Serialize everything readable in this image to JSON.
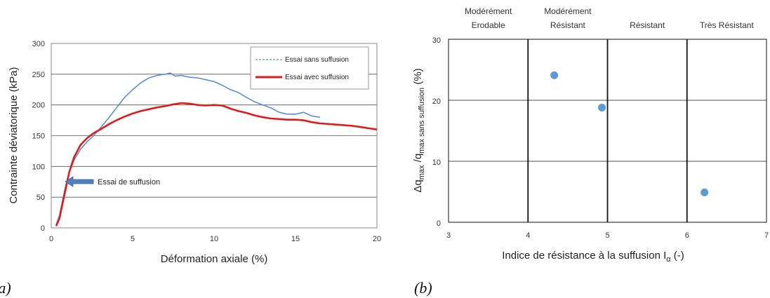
{
  "chart_data": [
    {
      "type": "line",
      "panel": "(a)",
      "xlabel": "Déformation axiale (%)",
      "ylabel": "Contrainte déviatorique (kPa)",
      "xlim": [
        0,
        20
      ],
      "ylim": [
        0,
        300
      ],
      "xticks": [
        0,
        5,
        10,
        15,
        20
      ],
      "yticks": [
        0,
        50,
        100,
        150,
        200,
        250,
        300
      ],
      "grid": "horizontal",
      "legend_position": "top-right",
      "annotation": "Essai de suffusion",
      "annotation_point": [
        1.0,
        75
      ],
      "series": [
        {
          "name": "Essai sans suffusion",
          "color": "#5b8fd1",
          "x": [
            0.3,
            0.5,
            0.7,
            0.9,
            1.1,
            1.4,
            1.8,
            2.2,
            2.6,
            3.0,
            3.5,
            4.0,
            4.5,
            5.0,
            5.5,
            6.0,
            6.5,
            7.0,
            7.3,
            7.6,
            8.0,
            8.5,
            9.0,
            9.5,
            10.0,
            10.5,
            11.0,
            11.5,
            12.0,
            12.5,
            13.0,
            13.5,
            14.0,
            14.5,
            15.0,
            15.5,
            16.0,
            16.5
          ],
          "y": [
            5,
            20,
            45,
            70,
            90,
            110,
            128,
            140,
            150,
            162,
            178,
            195,
            212,
            225,
            236,
            244,
            248,
            250,
            252,
            247,
            248,
            245,
            244,
            241,
            238,
            232,
            225,
            220,
            212,
            205,
            200,
            195,
            188,
            185,
            185,
            188,
            182,
            180
          ]
        },
        {
          "name": "Essai avec suffusion",
          "color": "#e01b1b",
          "x": [
            0.3,
            0.5,
            0.7,
            0.9,
            1.1,
            1.4,
            1.8,
            2.2,
            2.6,
            3.0,
            3.5,
            4.0,
            4.5,
            5.0,
            5.5,
            6.0,
            6.5,
            7.0,
            7.5,
            8.0,
            8.5,
            9.0,
            9.5,
            10.0,
            10.5,
            11.0,
            11.5,
            12.0,
            12.5,
            13.0,
            13.5,
            14.0,
            14.5,
            15.0,
            15.5,
            16.0,
            16.5,
            17.0,
            17.5,
            18.0,
            18.5,
            19.0,
            19.5,
            20.0
          ],
          "y": [
            3,
            15,
            40,
            65,
            90,
            115,
            135,
            146,
            154,
            160,
            168,
            175,
            181,
            186,
            190,
            193,
            196,
            198,
            201,
            203,
            202,
            200,
            199,
            200,
            199,
            194,
            190,
            187,
            183,
            180,
            178,
            177,
            176,
            176,
            175,
            172,
            170,
            169,
            168,
            167,
            166,
            164,
            162,
            160
          ]
        }
      ]
    },
    {
      "type": "scatter",
      "panel": "(b)",
      "xlabel": "Indice de résistance à la suffusion I",
      "xlabel_sub": "α",
      "xlabel_suffix": " (-)",
      "ylabel_parts": [
        "Δq",
        "max",
        " /q",
        "max sans suffusion",
        " (%)"
      ],
      "xlim": [
        3,
        7
      ],
      "ylim": [
        0,
        30
      ],
      "xticks": [
        3,
        4,
        5,
        6,
        7
      ],
      "yticks": [
        0,
        10,
        20,
        30
      ],
      "zones": [
        "Modéré ment Erodable",
        "Modérément Résistant",
        "Résistant",
        "Très Résistant"
      ],
      "zone_lines": [
        [
          "Modérément",
          "Erodable"
        ],
        [
          "Modérément",
          "Résistant"
        ],
        [
          "Résistant"
        ],
        [
          "Très Résistant"
        ]
      ],
      "zone_boundaries": [
        4,
        5,
        6
      ],
      "marker_color": "#5b9bd5",
      "points": [
        {
          "x": 4.33,
          "y": 24.1
        },
        {
          "x": 4.93,
          "y": 18.8
        },
        {
          "x": 6.22,
          "y": 4.9
        }
      ]
    }
  ]
}
